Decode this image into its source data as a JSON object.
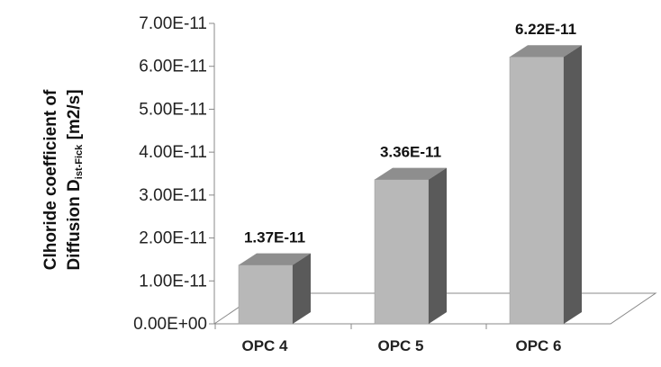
{
  "chart_data": {
    "type": "bar",
    "style": "3d-column",
    "categories": [
      "OPC 4",
      "OPC 5",
      "OPC 6"
    ],
    "values": [
      1.37e-11,
      3.36e-11,
      6.22e-11
    ],
    "data_labels": [
      "1.37E-11",
      "3.36E-11",
      "6.22E-11"
    ],
    "ylim": [
      0,
      7e-11
    ],
    "yticks": [
      "0.00E+00",
      "1.00E-11",
      "2.00E-11",
      "3.00E-11",
      "4.00E-11",
      "5.00E-11",
      "6.00E-11",
      "7.00E-11"
    ],
    "ylabel_line1": "Clhoride coefficient of",
    "ylabel_line2_main": "Diffusion  D",
    "ylabel_line2_sub": "ist-Fick",
    "ylabel_line2_end": " [m2/s]",
    "title": "",
    "xlabel": "",
    "grid": false,
    "legend": "none",
    "colors": {
      "bar_front": "#b8b8b8",
      "bar_top": "#8e8e8e",
      "bar_side": "#5a5a5a",
      "axis": "#888888"
    }
  }
}
